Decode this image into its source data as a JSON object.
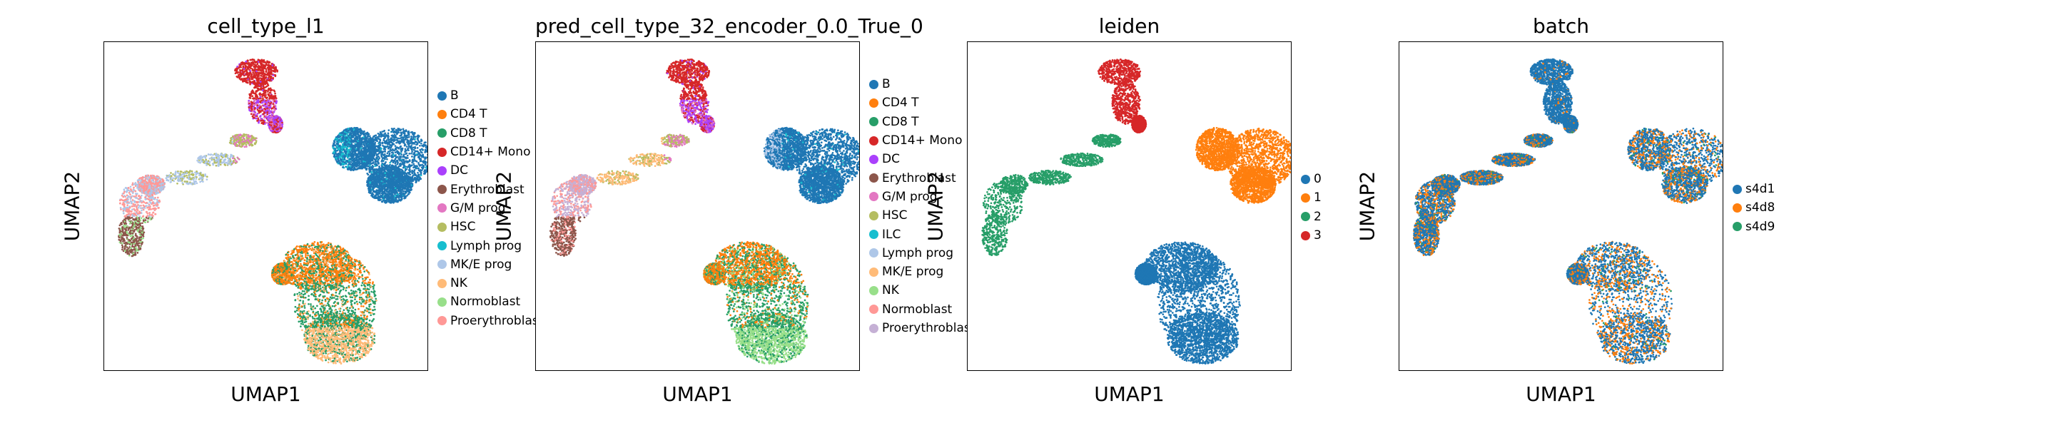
{
  "figure": {
    "xlabel": "UMAP1",
    "ylabel": "UMAP2"
  },
  "panels": [
    {
      "title": "cell_type_l1",
      "legend": [
        {
          "label": "B",
          "color": "#1f77b4"
        },
        {
          "label": "CD4 T",
          "color": "#ff7f0e"
        },
        {
          "label": "CD8 T",
          "color": "#279e68"
        },
        {
          "label": "CD14+ Mono",
          "color": "#d62728"
        },
        {
          "label": "DC",
          "color": "#aa40fc"
        },
        {
          "label": "Erythroblast",
          "color": "#8c564b"
        },
        {
          "label": "G/M prog",
          "color": "#e377c2"
        },
        {
          "label": "HSC",
          "color": "#b5bd61"
        },
        {
          "label": "Lymph prog",
          "color": "#17becf"
        },
        {
          "label": "MK/E prog",
          "color": "#aec7e8"
        },
        {
          "label": "NK",
          "color": "#ffbb78"
        },
        {
          "label": "Normoblast",
          "color": "#98df8a"
        },
        {
          "label": "Proerythroblast",
          "color": "#ff9896"
        }
      ]
    },
    {
      "title": "pred_cell_type_32_encoder_0.0_True_0",
      "legend": [
        {
          "label": "B",
          "color": "#1f77b4"
        },
        {
          "label": "CD4 T",
          "color": "#ff7f0e"
        },
        {
          "label": "CD8 T",
          "color": "#279e68"
        },
        {
          "label": "CD14+ Mono",
          "color": "#d62728"
        },
        {
          "label": "DC",
          "color": "#aa40fc"
        },
        {
          "label": "Erythroblast",
          "color": "#8c564b"
        },
        {
          "label": "G/M prog",
          "color": "#e377c2"
        },
        {
          "label": "HSC",
          "color": "#b5bd61"
        },
        {
          "label": "ILC",
          "color": "#17becf"
        },
        {
          "label": "Lymph prog",
          "color": "#aec7e8"
        },
        {
          "label": "MK/E prog",
          "color": "#ffbb78"
        },
        {
          "label": "NK",
          "color": "#98df8a"
        },
        {
          "label": "Normoblast",
          "color": "#ff9896"
        },
        {
          "label": "Proerythroblast",
          "color": "#c5b0d5"
        }
      ]
    },
    {
      "title": "leiden",
      "legend": [
        {
          "label": "0",
          "color": "#1f77b4"
        },
        {
          "label": "1",
          "color": "#ff7f0e"
        },
        {
          "label": "2",
          "color": "#279e68"
        },
        {
          "label": "3",
          "color": "#d62728"
        }
      ]
    },
    {
      "title": "batch",
      "legend": [
        {
          "label": "s4d1",
          "color": "#1f77b4"
        },
        {
          "label": "s4d8",
          "color": "#ff7f0e"
        },
        {
          "label": "s4d9",
          "color": "#279e68"
        }
      ]
    }
  ],
  "chart_data": [
    {
      "type": "scatter",
      "title": "cell_type_l1",
      "xlabel": "UMAP1",
      "ylabel": "UMAP2",
      "legend_placement": "right",
      "grid": false,
      "series": [
        {
          "name": "B",
          "color": "#1f77b4",
          "cluster": "right-middle"
        },
        {
          "name": "CD4 T",
          "color": "#ff7f0e",
          "cluster": "lower"
        },
        {
          "name": "CD8 T",
          "color": "#279e68",
          "cluster": "lower"
        },
        {
          "name": "CD14+ Mono",
          "color": "#d62728",
          "cluster": "top"
        },
        {
          "name": "DC",
          "color": "#aa40fc",
          "cluster": "top"
        },
        {
          "name": "Erythroblast",
          "color": "#8c564b",
          "cluster": "left"
        },
        {
          "name": "G/M prog",
          "color": "#e377c2",
          "cluster": "top"
        },
        {
          "name": "HSC",
          "color": "#b5bd61",
          "cluster": "bridge"
        },
        {
          "name": "Lymph prog",
          "color": "#17becf",
          "cluster": "right-middle"
        },
        {
          "name": "MK/E prog",
          "color": "#aec7e8",
          "cluster": "bridge"
        },
        {
          "name": "NK",
          "color": "#ffbb78",
          "cluster": "lower"
        },
        {
          "name": "Normoblast",
          "color": "#98df8a",
          "cluster": "left"
        },
        {
          "name": "Proerythroblast",
          "color": "#ff9896",
          "cluster": "left"
        }
      ]
    },
    {
      "type": "scatter",
      "title": "pred_cell_type_32_encoder_0.0_True_0",
      "xlabel": "UMAP1",
      "ylabel": "UMAP2",
      "legend_placement": "right",
      "grid": false,
      "series": [
        {
          "name": "B",
          "color": "#1f77b4",
          "cluster": "right-middle"
        },
        {
          "name": "CD4 T",
          "color": "#ff7f0e",
          "cluster": "lower"
        },
        {
          "name": "CD8 T",
          "color": "#279e68",
          "cluster": "lower"
        },
        {
          "name": "CD14+ Mono",
          "color": "#d62728",
          "cluster": "top"
        },
        {
          "name": "DC",
          "color": "#aa40fc",
          "cluster": "top"
        },
        {
          "name": "Erythroblast",
          "color": "#8c564b",
          "cluster": "left"
        },
        {
          "name": "G/M prog",
          "color": "#e377c2",
          "cluster": "top"
        },
        {
          "name": "HSC",
          "color": "#b5bd61",
          "cluster": "bridge"
        },
        {
          "name": "ILC",
          "color": "#17becf",
          "cluster": "right-middle"
        },
        {
          "name": "Lymph prog",
          "color": "#aec7e8",
          "cluster": "right-middle"
        },
        {
          "name": "MK/E prog",
          "color": "#ffbb78",
          "cluster": "bridge"
        },
        {
          "name": "NK",
          "color": "#98df8a",
          "cluster": "lower"
        },
        {
          "name": "Normoblast",
          "color": "#ff9896",
          "cluster": "left"
        },
        {
          "name": "Proerythroblast",
          "color": "#c5b0d5",
          "cluster": "left"
        }
      ]
    },
    {
      "type": "scatter",
      "title": "leiden",
      "xlabel": "UMAP1",
      "ylabel": "UMAP2",
      "legend_placement": "right",
      "grid": false,
      "series": [
        {
          "name": "0",
          "color": "#1f77b4",
          "cluster": "lower"
        },
        {
          "name": "1",
          "color": "#ff7f0e",
          "cluster": "right-middle"
        },
        {
          "name": "2",
          "color": "#279e68",
          "cluster": "left"
        },
        {
          "name": "3",
          "color": "#d62728",
          "cluster": "top"
        }
      ]
    },
    {
      "type": "scatter",
      "title": "batch",
      "xlabel": "UMAP1",
      "ylabel": "UMAP2",
      "legend_placement": "right",
      "grid": false,
      "series": [
        {
          "name": "s4d1",
          "color": "#1f77b4",
          "cluster": "all"
        },
        {
          "name": "s4d8",
          "color": "#ff7f0e",
          "cluster": "all"
        },
        {
          "name": "s4d9",
          "color": "#279e68",
          "cluster": "all"
        }
      ]
    }
  ]
}
